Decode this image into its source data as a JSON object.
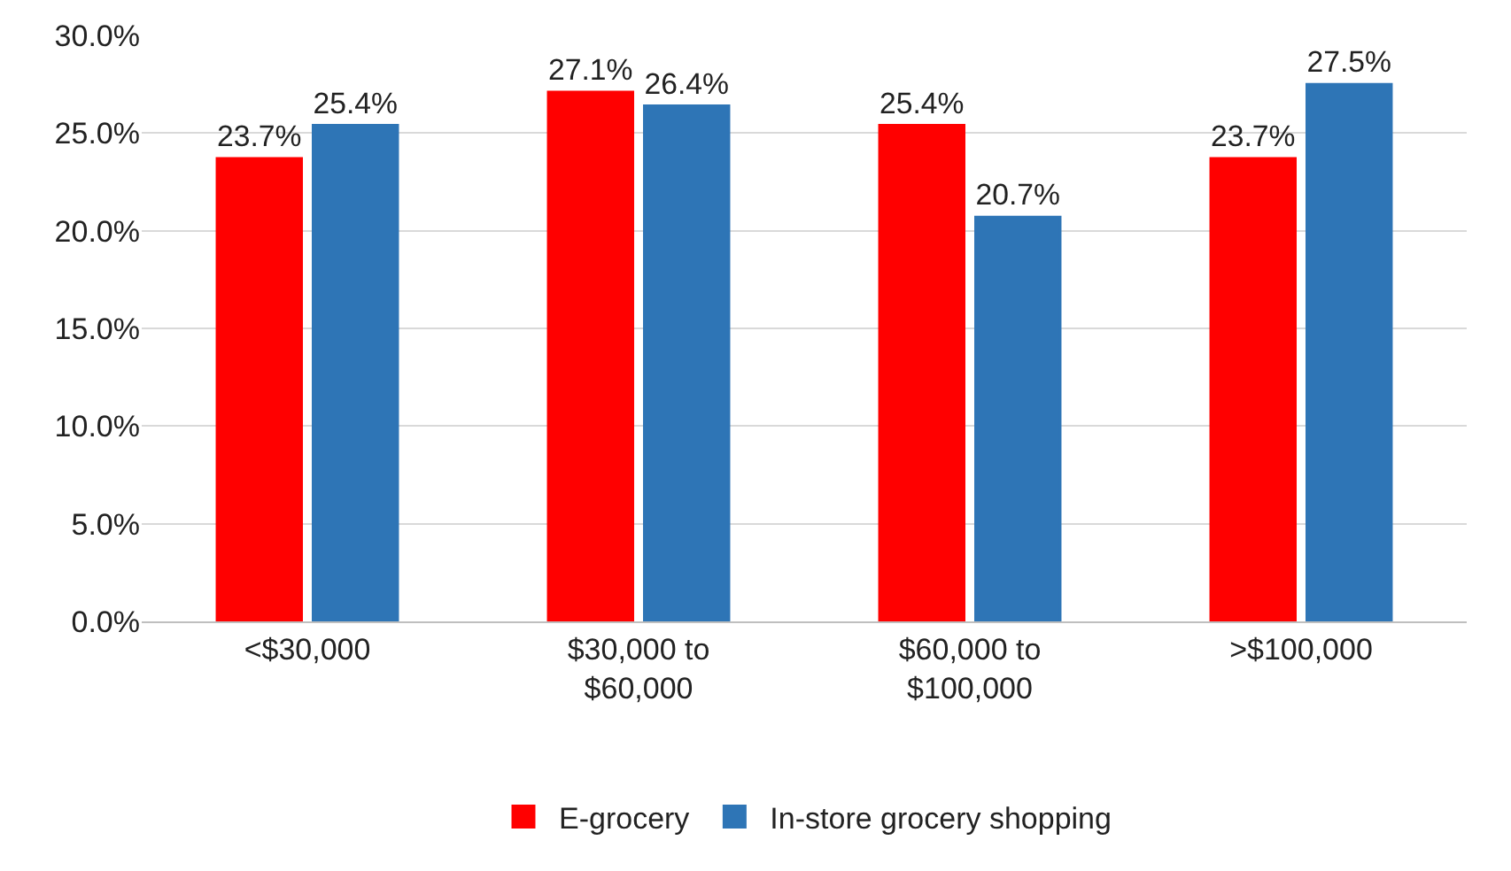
{
  "chart_data": {
    "type": "bar",
    "categories": [
      "<$30,000",
      "$30,000 to\n$60,000",
      "$60,000 to\n$100,000",
      ">$100,000"
    ],
    "series": [
      {
        "name": "E-grocery",
        "color": "#ff0000",
        "values": [
          23.7,
          27.1,
          25.4,
          23.7
        ],
        "value_labels": [
          "23.7%",
          "27.1%",
          "25.4%",
          "23.7%"
        ]
      },
      {
        "name": "In-store grocery shopping",
        "color": "#2e75b6",
        "values": [
          25.4,
          26.4,
          20.7,
          27.5
        ],
        "value_labels": [
          "25.4%",
          "26.4%",
          "20.7%",
          "27.5%"
        ]
      }
    ],
    "ylim": [
      0,
      30
    ],
    "yticks": [
      {
        "value": 0,
        "label": "0.0%"
      },
      {
        "value": 5,
        "label": "5.0%"
      },
      {
        "value": 10,
        "label": "10.0%"
      },
      {
        "value": 15,
        "label": "15.0%"
      },
      {
        "value": 20,
        "label": "20.0%"
      },
      {
        "value": 25,
        "label": "25.0%"
      },
      {
        "value": 30,
        "label": "30.0%"
      }
    ],
    "grid": "y",
    "legend": "bottom"
  }
}
